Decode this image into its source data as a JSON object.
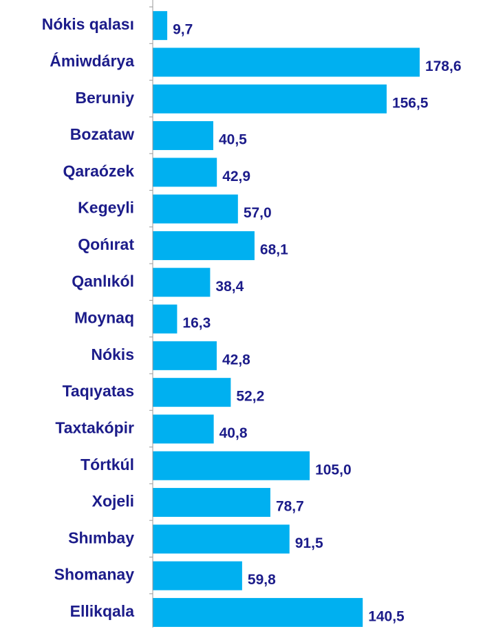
{
  "chart_data": {
    "type": "barh",
    "categories": [
      "Nókis qalası",
      "Ámiwdárya",
      "Beruniy",
      "Bozataw",
      "Qaraózek",
      "Kegeyli",
      "Qońırat",
      "Qanlıkól",
      "Moynaq",
      "Nókis",
      "Taqıyatas",
      "Taxtakópir",
      "Tórtkúl",
      "Xojeli",
      "Shımbay",
      "Shomanay",
      "Ellikqala"
    ],
    "values": [
      9.7,
      178.6,
      156.5,
      40.5,
      42.9,
      57.0,
      68.1,
      38.4,
      16.3,
      42.8,
      52.2,
      40.8,
      105.0,
      78.7,
      91.5,
      59.8,
      140.5
    ],
    "value_labels": [
      "9,7",
      "178,6",
      "156,5",
      "40,5",
      "42,9",
      "57,0",
      "68,1",
      "38,4",
      "16,3",
      "42,8",
      "52,2",
      "40,8",
      "105,0",
      "78,7",
      "91,5",
      "59,8",
      "140,5"
    ],
    "color": "#00b0f0",
    "xlim": [
      0,
      180
    ]
  }
}
